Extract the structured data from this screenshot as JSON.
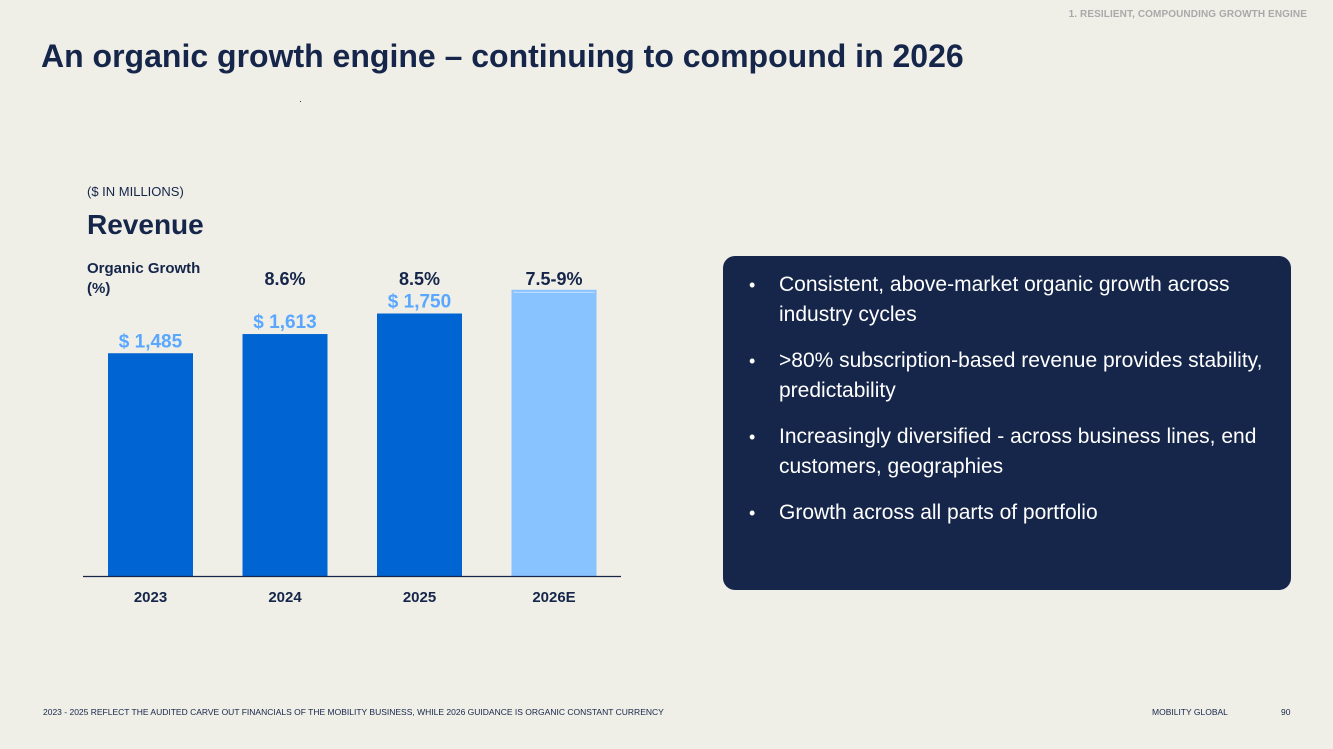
{
  "header": {
    "section_tag": "1. RESILIENT, COMPOUNDING GROWTH ENGINE",
    "title": "An organic growth engine – continuing to compound in 2026"
  },
  "chart_data": {
    "type": "bar",
    "unit_label": "($ IN MILLIONS)",
    "title": "Revenue",
    "growth_label": "Organic Growth (%)",
    "categories": [
      "2023",
      "2024",
      "2025",
      "2026E"
    ],
    "series": [
      {
        "values": [
          1485,
          1613,
          1750,
          null
        ],
        "value_labels": [
          "$ 1,485",
          "$ 1,613",
          "$ 1,750",
          ""
        ]
      }
    ],
    "estimate_range": [
      1881,
      1908
    ],
    "growth": [
      "",
      "8.6%",
      "8.5%",
      "7.5-9%"
    ],
    "ylim": [
      0,
      2000
    ],
    "grid": false,
    "colors": {
      "actual": "#0064d2",
      "estimate": "#88c2ff",
      "estimate_top": "#c6e2ff",
      "value_label": "#5aa7ff",
      "axis_text": "#15264a"
    }
  },
  "bullets": [
    "Consistent, above-market organic growth across industry cycles",
    ">80% subscription-based revenue provides stability, predictability",
    "Increasingly diversified - across business lines, end customers, geographies",
    "Growth across all parts of portfolio"
  ],
  "footer": {
    "footnote": "2023 - 2025 REFLECT THE AUDITED CARVE OUT FINANCIALS OF THE MOBILITY BUSINESS, WHILE 2026 GUIDANCE IS ORGANIC CONSTANT CURRENCY",
    "brand": "MOBILITY GLOBAL",
    "page_number": "90"
  }
}
